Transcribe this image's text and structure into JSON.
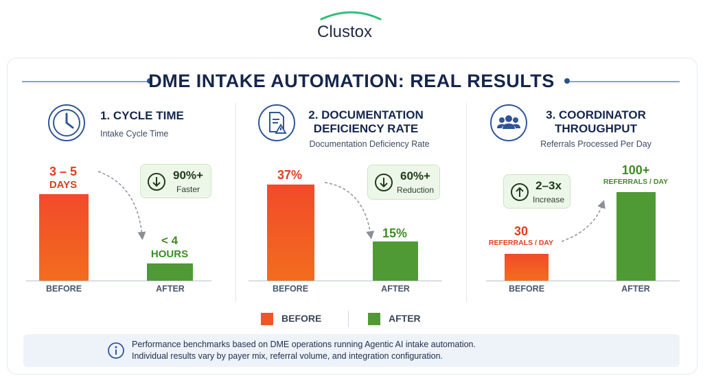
{
  "brand": {
    "logo_text": "Clustox",
    "accent": "#2ebf7a"
  },
  "page_title": "DME INTAKE AUTOMATION: REAL RESULTS",
  "colors": {
    "before": "#f2542a",
    "after": "#4f9a34",
    "navy": "#15264d"
  },
  "panels": [
    {
      "title_lines": [
        "1. CYCLE TIME"
      ],
      "subtitle": "Intake Cycle Time",
      "icon": "clock-icon",
      "before_label_lines": [
        "3 – 5",
        "DAYS"
      ],
      "after_label_lines": [
        "< 4",
        "HOURS"
      ],
      "badge": {
        "value": "90%+",
        "label": "Faster",
        "direction": "down",
        "icon": "arrow-down-circle-icon"
      }
    },
    {
      "title_lines": [
        "2. DOCUMENTATION",
        "DEFICIENCY RATE"
      ],
      "subtitle": "Documentation Deficiency Rate",
      "icon": "document-warning-icon",
      "before_label_lines": [
        "37%"
      ],
      "after_label_lines": [
        "15%"
      ],
      "badge": {
        "value": "60%+",
        "label": "Reduction",
        "direction": "down",
        "icon": "arrow-down-circle-icon"
      }
    },
    {
      "title_lines": [
        "3. COORDINATOR",
        "THROUGHPUT"
      ],
      "subtitle": "Referrals Processed Per Day",
      "icon": "people-group-icon",
      "before_label_lines": [
        "30",
        "REFERRALS / DAY"
      ],
      "after_label_lines": [
        "100+",
        "REFERRALS / DAY"
      ],
      "badge": {
        "value": "2–3x",
        "label": "Increase",
        "direction": "up",
        "icon": "arrow-up-circle-icon"
      }
    }
  ],
  "chart_data": [
    {
      "type": "bar",
      "title": "1. CYCLE TIME",
      "subtitle": "Intake Cycle Time",
      "categories": [
        "BEFORE",
        "AFTER"
      ],
      "values": [
        96,
        4
      ],
      "unit": "hours",
      "value_labels": [
        "3 – 5 DAYS",
        "< 4 HOURS"
      ],
      "annotation": "90%+ Faster"
    },
    {
      "type": "bar",
      "title": "2. DOCUMENTATION DEFICIENCY RATE",
      "subtitle": "Documentation Deficiency Rate",
      "categories": [
        "BEFORE",
        "AFTER"
      ],
      "values": [
        37,
        15
      ],
      "unit": "%",
      "value_labels": [
        "37%",
        "15%"
      ],
      "annotation": "60%+ Reduction"
    },
    {
      "type": "bar",
      "title": "3. COORDINATOR THROUGHPUT",
      "subtitle": "Referrals Processed Per Day",
      "categories": [
        "BEFORE",
        "AFTER"
      ],
      "values": [
        30,
        100
      ],
      "unit": "referrals / day",
      "value_labels": [
        "30 REFERRALS / DAY",
        "100+ REFERRALS / DAY"
      ],
      "annotation": "2–3x Increase"
    }
  ],
  "legend": [
    {
      "label": "BEFORE",
      "color": "#f2542a"
    },
    {
      "label": "AFTER",
      "color": "#4f9a34"
    }
  ],
  "footnote": {
    "icon": "info-icon",
    "line1": "Performance benchmarks based on DME operations running Agentic AI intake automation.",
    "line2": "Individual results vary by payer mix, referral volume, and integration configuration."
  }
}
